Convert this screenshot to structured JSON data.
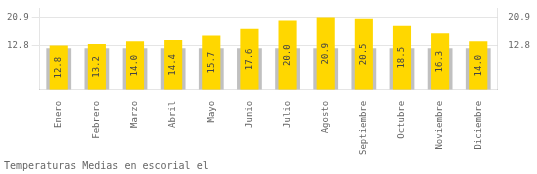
{
  "chart_data": {
    "type": "bar",
    "title": "Temperaturas Medias en escorial el",
    "categories": [
      "Enero",
      "Febrero",
      "Marzo",
      "Abril",
      "Mayo",
      "Junio",
      "Julio",
      "Agosto",
      "Septiembre",
      "Octubre",
      "Noviembre",
      "Diciembre"
    ],
    "series": [
      {
        "color": "#C0C0C0",
        "values": [
          12.0,
          12.0,
          12.0,
          12.0,
          12.0,
          12.0,
          12.0,
          12.0,
          12.0,
          12.0,
          12.0,
          12.0
        ]
      },
      {
        "color": "#FFD700",
        "values": [
          12.8,
          13.2,
          14.0,
          14.4,
          15.7,
          17.6,
          20.0,
          20.9,
          20.5,
          18.5,
          16.3,
          14.0
        ],
        "value_labels": [
          "12.8",
          "13.2",
          "14.0",
          "14.4",
          "15.7",
          "17.6",
          "20.0",
          "20.9",
          "20.5",
          "18.5",
          "16.3",
          "14.0"
        ],
        "data_labels": true
      }
    ],
    "ylim": [
      0,
      23.5
    ],
    "yticks": [
      12.8,
      20.9
    ],
    "grid": true
  }
}
